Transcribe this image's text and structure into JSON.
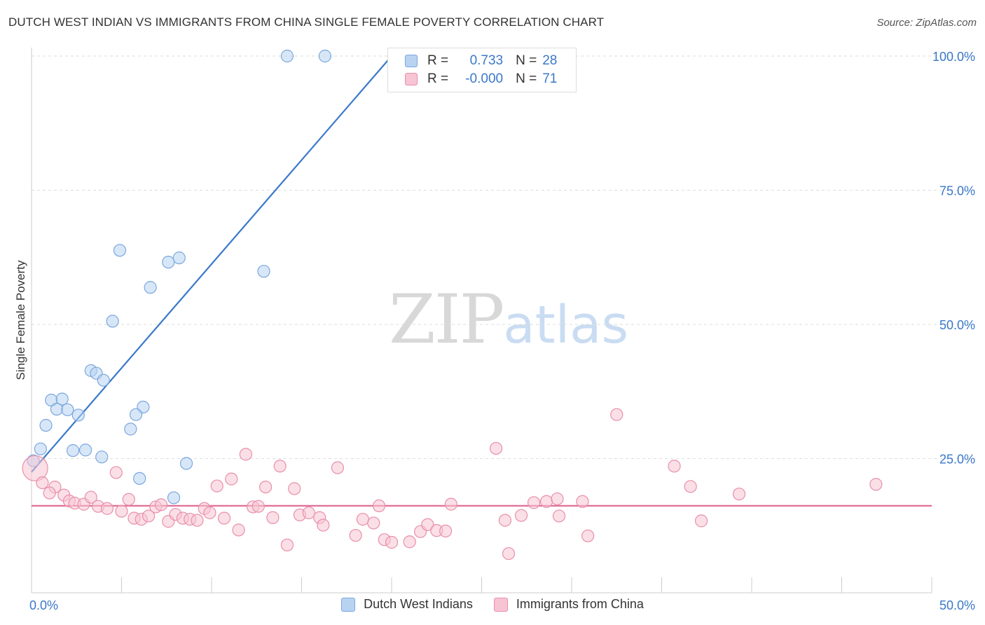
{
  "title": "DUTCH WEST INDIAN VS IMMIGRANTS FROM CHINA SINGLE FEMALE POVERTY CORRELATION CHART",
  "source": "Source: ZipAtlas.com",
  "watermark": {
    "zip": "ZIP",
    "atlas": "atlas"
  },
  "legend": {
    "rows": [
      {
        "r_label": "R =",
        "r_value": "0.733",
        "n_label": "N =",
        "n_value": "28"
      },
      {
        "r_label": "R =",
        "r_value": "-0.000",
        "n_label": "N =",
        "n_value": "71"
      }
    ]
  },
  "colors": {
    "blue_fill": "#b8d3f2",
    "blue_stroke": "#7aa7dd",
    "blue_line": "#3a78c9",
    "pink_fill": "#f7c4d4",
    "pink_stroke": "#e88fab",
    "pink_line": "#e16f97",
    "grid": "#dddddd",
    "tick_label": "#3a78c9"
  },
  "chart_data": {
    "type": "scatter",
    "title": "DUTCH WEST INDIAN VS IMMIGRANTS FROM CHINA SINGLE FEMALE POVERTY CORRELATION CHART",
    "xlabel": "",
    "ylabel": "Single Female Poverty",
    "xlim": [
      0,
      50
    ],
    "ylim": [
      0,
      100
    ],
    "x_tick_labels": [
      "0.0%",
      "50.0%"
    ],
    "y_ticks": [
      25,
      50,
      75,
      100
    ],
    "y_tick_labels": [
      "25.0%",
      "50.0%",
      "75.0%",
      "100.0%"
    ],
    "series": [
      {
        "name": "Dutch West Indians",
        "color": "blue",
        "trend": {
          "x": [
            0.0,
            20.0
          ],
          "y": [
            22.5,
            100.0
          ]
        },
        "points": [
          {
            "x": 14.2,
            "y": 100
          },
          {
            "x": 16.3,
            "y": 100
          },
          {
            "x": 4.9,
            "y": 63.8
          },
          {
            "x": 7.6,
            "y": 61.6
          },
          {
            "x": 8.2,
            "y": 62.4
          },
          {
            "x": 12.9,
            "y": 59.9
          },
          {
            "x": 6.6,
            "y": 56.9
          },
          {
            "x": 4.5,
            "y": 50.6
          },
          {
            "x": 3.3,
            "y": 41.4
          },
          {
            "x": 3.6,
            "y": 40.9
          },
          {
            "x": 4.0,
            "y": 39.6
          },
          {
            "x": 1.1,
            "y": 35.9
          },
          {
            "x": 1.7,
            "y": 36.1
          },
          {
            "x": 1.4,
            "y": 34.2
          },
          {
            "x": 2.0,
            "y": 34.1
          },
          {
            "x": 2.6,
            "y": 33.1
          },
          {
            "x": 6.2,
            "y": 34.6
          },
          {
            "x": 5.8,
            "y": 33.2
          },
          {
            "x": 0.8,
            "y": 31.2
          },
          {
            "x": 5.5,
            "y": 30.5
          },
          {
            "x": 0.5,
            "y": 26.8
          },
          {
            "x": 2.3,
            "y": 26.5
          },
          {
            "x": 3.0,
            "y": 26.6
          },
          {
            "x": 3.9,
            "y": 25.3
          },
          {
            "x": 8.6,
            "y": 24.1
          },
          {
            "x": 6.0,
            "y": 21.3
          },
          {
            "x": 7.9,
            "y": 17.7
          },
          {
            "x": 0.1,
            "y": 24.6
          }
        ]
      },
      {
        "name": "Immigrants from China",
        "color": "pink",
        "trend": {
          "x": [
            0.0,
            50.0
          ],
          "y": [
            16.2,
            16.2
          ]
        },
        "points": [
          {
            "x": 0.2,
            "y": 23.2,
            "big": true
          },
          {
            "x": 0.6,
            "y": 20.5
          },
          {
            "x": 1.3,
            "y": 19.7
          },
          {
            "x": 1.0,
            "y": 18.6
          },
          {
            "x": 1.8,
            "y": 18.2
          },
          {
            "x": 2.1,
            "y": 17.1
          },
          {
            "x": 2.4,
            "y": 16.7
          },
          {
            "x": 2.9,
            "y": 16.5
          },
          {
            "x": 3.3,
            "y": 17.8
          },
          {
            "x": 3.7,
            "y": 16.1
          },
          {
            "x": 4.2,
            "y": 15.7
          },
          {
            "x": 4.7,
            "y": 22.4
          },
          {
            "x": 5.0,
            "y": 15.2
          },
          {
            "x": 5.4,
            "y": 17.4
          },
          {
            "x": 5.7,
            "y": 13.9
          },
          {
            "x": 6.1,
            "y": 13.7
          },
          {
            "x": 6.5,
            "y": 14.3
          },
          {
            "x": 6.9,
            "y": 16.0
          },
          {
            "x": 7.2,
            "y": 16.4
          },
          {
            "x": 7.6,
            "y": 13.3
          },
          {
            "x": 8.0,
            "y": 14.6
          },
          {
            "x": 8.4,
            "y": 13.9
          },
          {
            "x": 8.8,
            "y": 13.7
          },
          {
            "x": 9.2,
            "y": 13.5
          },
          {
            "x": 9.6,
            "y": 15.7
          },
          {
            "x": 9.9,
            "y": 14.9
          },
          {
            "x": 10.3,
            "y": 19.9
          },
          {
            "x": 10.7,
            "y": 13.9
          },
          {
            "x": 11.1,
            "y": 21.2
          },
          {
            "x": 11.5,
            "y": 11.7
          },
          {
            "x": 11.9,
            "y": 25.8
          },
          {
            "x": 12.3,
            "y": 16.0
          },
          {
            "x": 12.6,
            "y": 16.1
          },
          {
            "x": 13.0,
            "y": 19.7
          },
          {
            "x": 13.4,
            "y": 14.0
          },
          {
            "x": 13.8,
            "y": 23.6
          },
          {
            "x": 14.2,
            "y": 8.9
          },
          {
            "x": 14.6,
            "y": 19.4
          },
          {
            "x": 14.9,
            "y": 14.5
          },
          {
            "x": 15.4,
            "y": 14.9
          },
          {
            "x": 16.0,
            "y": 14.0
          },
          {
            "x": 16.2,
            "y": 12.6
          },
          {
            "x": 17.0,
            "y": 23.3
          },
          {
            "x": 18.0,
            "y": 10.7
          },
          {
            "x": 18.4,
            "y": 13.7
          },
          {
            "x": 19.0,
            "y": 13.0
          },
          {
            "x": 19.3,
            "y": 16.2
          },
          {
            "x": 19.6,
            "y": 9.9
          },
          {
            "x": 20.0,
            "y": 9.4
          },
          {
            "x": 21.0,
            "y": 9.5
          },
          {
            "x": 21.6,
            "y": 11.4
          },
          {
            "x": 22.0,
            "y": 12.7
          },
          {
            "x": 22.5,
            "y": 11.6
          },
          {
            "x": 23.0,
            "y": 11.5
          },
          {
            "x": 23.3,
            "y": 16.5
          },
          {
            "x": 25.8,
            "y": 26.9
          },
          {
            "x": 26.3,
            "y": 13.5
          },
          {
            "x": 26.5,
            "y": 7.3
          },
          {
            "x": 27.2,
            "y": 14.4
          },
          {
            "x": 27.9,
            "y": 16.8
          },
          {
            "x": 28.6,
            "y": 17.0
          },
          {
            "x": 29.2,
            "y": 17.5
          },
          {
            "x": 29.3,
            "y": 14.3
          },
          {
            "x": 30.6,
            "y": 17.0
          },
          {
            "x": 30.9,
            "y": 10.6
          },
          {
            "x": 32.5,
            "y": 33.2
          },
          {
            "x": 35.7,
            "y": 23.6
          },
          {
            "x": 36.6,
            "y": 19.8
          },
          {
            "x": 37.2,
            "y": 13.4
          },
          {
            "x": 39.3,
            "y": 18.4
          },
          {
            "x": 46.9,
            "y": 20.2
          }
        ]
      }
    ]
  },
  "bottom_legend": [
    {
      "label": "Dutch West Indians",
      "color": "blue"
    },
    {
      "label": "Immigrants from China",
      "color": "pink"
    }
  ]
}
